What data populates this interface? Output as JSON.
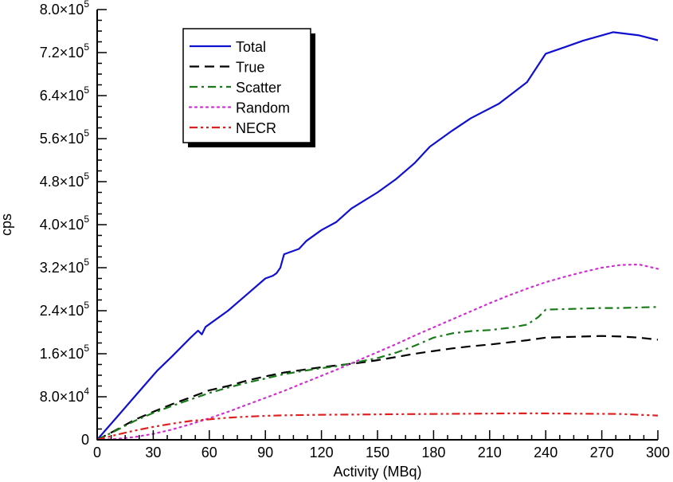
{
  "chart_data": {
    "type": "line",
    "xlabel": "Activity (MBq)",
    "ylabel": "cps",
    "xlim": [
      0,
      300
    ],
    "ylim": [
      0,
      800000
    ],
    "xticks": [
      0,
      30,
      60,
      90,
      120,
      150,
      180,
      210,
      240,
      270,
      300
    ],
    "xtick_labels": [
      "0",
      "30",
      "60",
      "90",
      "120",
      "150",
      "180",
      "210",
      "240",
      "270",
      "300"
    ],
    "yticks": [
      0,
      80000,
      160000,
      240000,
      320000,
      400000,
      480000,
      560000,
      640000,
      720000,
      800000
    ],
    "ytick_labels": [
      {
        "text": "0",
        "exp": ""
      },
      {
        "text": "8.0×10",
        "exp": "4"
      },
      {
        "text": "1.6×10",
        "exp": "5"
      },
      {
        "text": "2.4×10",
        "exp": "5"
      },
      {
        "text": "3.2×10",
        "exp": "5"
      },
      {
        "text": "4.0×10",
        "exp": "5"
      },
      {
        "text": "4.8×10",
        "exp": "5"
      },
      {
        "text": "5.6×10",
        "exp": "5"
      },
      {
        "text": "6.4×10",
        "exp": "5"
      },
      {
        "text": "7.2×10",
        "exp": "5"
      },
      {
        "text": "8.0×10",
        "exp": "5"
      }
    ],
    "legend_position": "top-left",
    "grid": false,
    "series": [
      {
        "name": "Total",
        "color": "#1010d0",
        "dash": "solid",
        "x": [
          0,
          5,
          10,
          20,
          30,
          32,
          40,
          50,
          54,
          56,
          58,
          70,
          80,
          90,
          94,
          96,
          98,
          100,
          108,
          112,
          120,
          128,
          136,
          150,
          160,
          170,
          178,
          190,
          200,
          215,
          230,
          240,
          250,
          260,
          270,
          276,
          290,
          300
        ],
        "y": [
          0,
          20000,
          40000,
          80000,
          120000,
          128000,
          155000,
          190000,
          203000,
          196000,
          210000,
          240000,
          270000,
          300000,
          305000,
          310000,
          320000,
          345000,
          355000,
          370000,
          390000,
          405000,
          430000,
          460000,
          485000,
          515000,
          545000,
          575000,
          598000,
          625000,
          665000,
          718000,
          730000,
          742000,
          752000,
          758000,
          752000,
          743000
        ]
      },
      {
        "name": "True",
        "color": "#000000",
        "dash": "dashed",
        "x": [
          0,
          10,
          20,
          30,
          40,
          50,
          60,
          70,
          80,
          90,
          100,
          110,
          120,
          130,
          140,
          150,
          160,
          170,
          180,
          190,
          200,
          210,
          220,
          230,
          240,
          250,
          260,
          270,
          280,
          290,
          300
        ],
        "y": [
          0,
          18000,
          37000,
          52000,
          66000,
          79000,
          92000,
          100000,
          110000,
          118000,
          125000,
          130000,
          135000,
          139000,
          143000,
          148000,
          154000,
          160000,
          165000,
          170000,
          174000,
          177000,
          181000,
          185000,
          190000,
          191000,
          192000,
          193000,
          192000,
          190000,
          186000
        ]
      },
      {
        "name": "Scatter",
        "color": "#1a7a1a",
        "dash": "dashdot",
        "x": [
          0,
          10,
          20,
          30,
          40,
          50,
          60,
          70,
          80,
          90,
          100,
          110,
          120,
          130,
          140,
          150,
          160,
          170,
          180,
          190,
          200,
          210,
          220,
          230,
          236,
          240,
          250,
          260,
          270,
          280,
          290,
          300
        ],
        "y": [
          0,
          17000,
          35000,
          50000,
          63000,
          75000,
          87000,
          97000,
          106000,
          114000,
          122000,
          128000,
          133000,
          138000,
          145000,
          152000,
          162000,
          175000,
          190000,
          198000,
          202000,
          204000,
          208000,
          214000,
          228000,
          242000,
          243000,
          244000,
          245000,
          245000,
          246000,
          247000
        ]
      },
      {
        "name": "Random",
        "color": "#d030d0",
        "dash": "dotted",
        "x": [
          0,
          10,
          20,
          30,
          40,
          50,
          60,
          70,
          80,
          90,
          100,
          110,
          120,
          130,
          140,
          150,
          160,
          170,
          180,
          190,
          200,
          210,
          220,
          230,
          240,
          250,
          260,
          270,
          280,
          290,
          300
        ],
        "y": [
          0,
          1500,
          5000,
          11000,
          19000,
          29000,
          40000,
          52000,
          65000,
          78000,
          91000,
          105000,
          119000,
          133000,
          148000,
          163000,
          178000,
          194000,
          209000,
          224000,
          239000,
          254000,
          268000,
          281000,
          293000,
          303000,
          312000,
          320000,
          325000,
          326000,
          318000
        ]
      },
      {
        "name": "NECR",
        "color": "#e02020",
        "dash": "dashdotdot",
        "x": [
          0,
          10,
          20,
          30,
          40,
          50,
          60,
          70,
          80,
          90,
          100,
          120,
          140,
          160,
          180,
          200,
          220,
          240,
          260,
          280,
          290,
          300
        ],
        "y": [
          0,
          9000,
          17000,
          24000,
          30000,
          35000,
          38000,
          41000,
          43000,
          44500,
          45500,
          46500,
          47000,
          47500,
          48000,
          48500,
          49000,
          49000,
          48500,
          48000,
          46500,
          45000
        ]
      }
    ]
  }
}
